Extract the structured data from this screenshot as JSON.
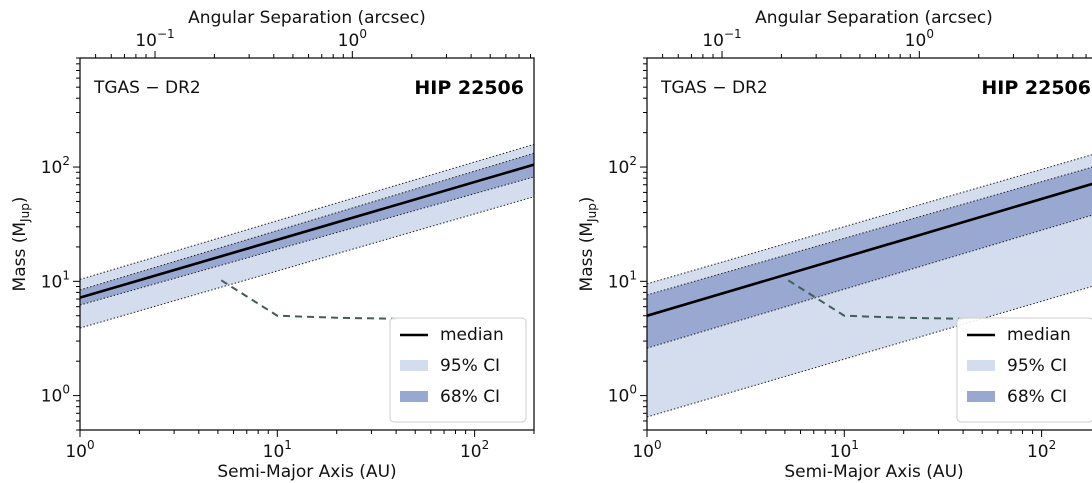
{
  "chart_data": [
    {
      "type": "line",
      "inset_label": "TGAS − DR2",
      "star_label": "HIP 22506",
      "xlabel": "Semi-Major Axis (AU)",
      "ylabel": "Mass (M",
      "ylabel_sub": "Jup",
      "ylabel_close": ")",
      "top_label": "Angular Separation (arcsec)",
      "xscale": "log",
      "yscale": "log",
      "xlim": [
        1,
        200
      ],
      "ylim": [
        0.5,
        900
      ],
      "x_ticks": [
        {
          "v": 1,
          "base": "10",
          "exp": "0"
        },
        {
          "v": 10,
          "base": "10",
          "exp": "1"
        },
        {
          "v": 100,
          "base": "10",
          "exp": "2"
        }
      ],
      "y_ticks": [
        {
          "v": 1,
          "base": "10",
          "exp": "0"
        },
        {
          "v": 10,
          "base": "10",
          "exp": "1"
        },
        {
          "v": 100,
          "base": "10",
          "exp": "2"
        }
      ],
      "top_ticks": [
        {
          "v": 2.4,
          "base": "10",
          "exp": "−1"
        },
        {
          "v": 24,
          "base": "10",
          "exp": "0"
        }
      ],
      "legend": {
        "position": "lower-right",
        "entries": [
          "median",
          "95% CI",
          "68% CI"
        ]
      },
      "colors": {
        "median": "#000000",
        "ci95": "#d3ddee",
        "ci68": "#98a8d0",
        "detection": "#3f5f58"
      },
      "series": [
        {
          "name": "median",
          "x": [
            1,
            200
          ],
          "y": [
            7.2,
            105
          ]
        },
        {
          "name": "68% CI",
          "x": [
            1,
            200
          ],
          "y_low": [
            6.2,
            82
          ],
          "y_high": [
            8.4,
            132
          ]
        },
        {
          "name": "95% CI",
          "x": [
            1,
            200
          ],
          "y_low": [
            3.9,
            55
          ],
          "y_high": [
            10.4,
            158
          ]
        }
      ],
      "detection_limit": {
        "x": [
          5.2,
          10,
          20,
          40
        ],
        "y": [
          10.2,
          5,
          4.8,
          4.7
        ]
      }
    },
    {
      "type": "line",
      "inset_label": "TGAS − DR2",
      "star_label": "HIP 22506",
      "xlabel": "Semi-Major Axis (AU)",
      "ylabel": "Mass (M",
      "ylabel_sub": "Jup",
      "ylabel_close": ")",
      "top_label": "Angular Separation (arcsec)",
      "xscale": "log",
      "yscale": "log",
      "xlim": [
        1,
        200
      ],
      "ylim": [
        0.5,
        900
      ],
      "x_ticks": [
        {
          "v": 1,
          "base": "10",
          "exp": "0"
        },
        {
          "v": 10,
          "base": "10",
          "exp": "1"
        },
        {
          "v": 100,
          "base": "10",
          "exp": "2"
        }
      ],
      "y_ticks": [
        {
          "v": 1,
          "base": "10",
          "exp": "0"
        },
        {
          "v": 10,
          "base": "10",
          "exp": "1"
        },
        {
          "v": 100,
          "base": "10",
          "exp": "2"
        }
      ],
      "top_ticks": [
        {
          "v": 2.4,
          "base": "10",
          "exp": "−1"
        },
        {
          "v": 24,
          "base": "10",
          "exp": "0"
        }
      ],
      "legend": {
        "position": "lower-right",
        "entries": [
          "median",
          "95% CI",
          "68% CI"
        ]
      },
      "colors": {
        "median": "#000000",
        "ci95": "#d3ddee",
        "ci68": "#98a8d0",
        "detection": "#3f5f58"
      },
      "series": [
        {
          "name": "median",
          "x": [
            1,
            200
          ],
          "y": [
            5,
            75
          ]
        },
        {
          "name": "68% CI",
          "x": [
            1,
            200
          ],
          "y_low": [
            2.6,
            40
          ],
          "y_high": [
            7.6,
            105
          ]
        },
        {
          "name": "95% CI",
          "x": [
            1,
            200
          ],
          "y_low": [
            0.65,
            9.5
          ],
          "y_high": [
            9.5,
            135
          ]
        }
      ],
      "detection_limit": {
        "x": [
          5.2,
          10,
          20,
          40
        ],
        "y": [
          10.2,
          5,
          4.8,
          4.7
        ]
      }
    }
  ]
}
